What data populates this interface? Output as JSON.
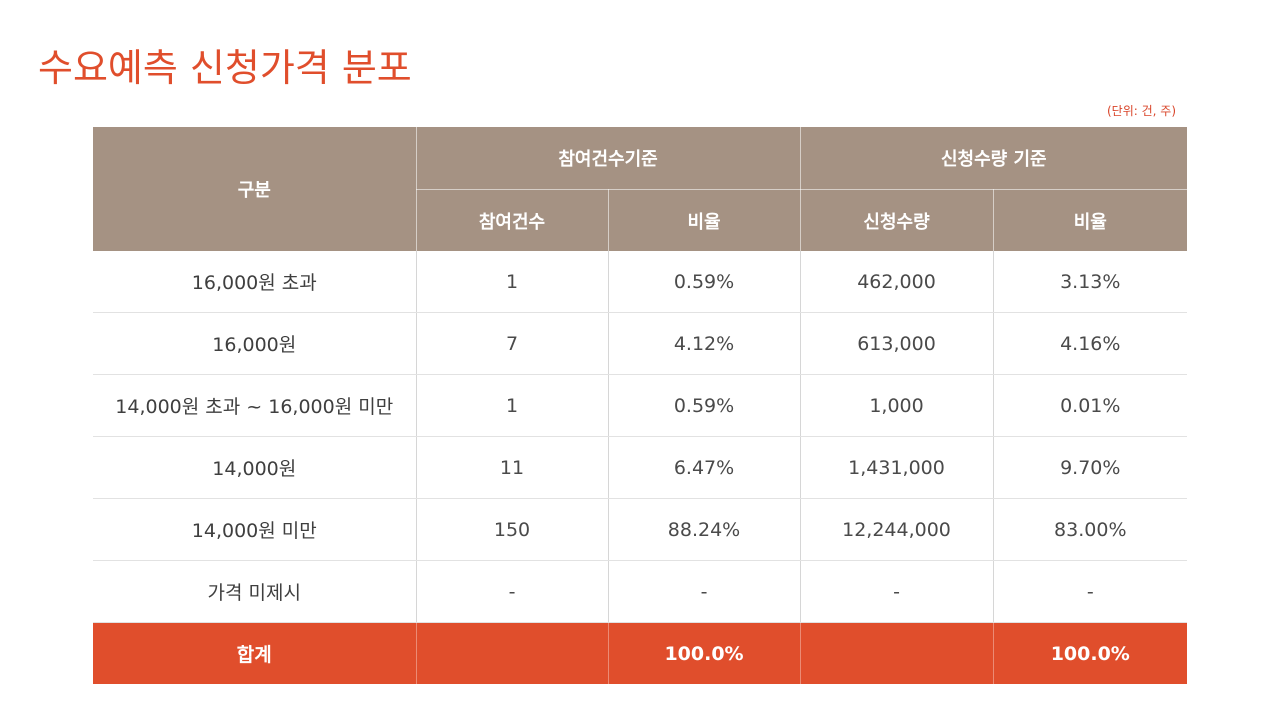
{
  "title": "수요예측 신청가격 분포",
  "unit_note": "(단위: 건, 주)",
  "table": {
    "header": {
      "category": "구분",
      "group_participation": "참여건수기준",
      "group_quantity": "신청수량 기준",
      "sub_participation_count": "참여건수",
      "sub_participation_ratio": "비율",
      "sub_quantity": "신청수량",
      "sub_quantity_ratio": "비율"
    },
    "rows": [
      {
        "label": "16,000원 초과",
        "count": "1",
        "count_ratio": "0.59%",
        "quantity": "462,000",
        "quantity_ratio": "3.13%"
      },
      {
        "label": "16,000원",
        "count": "7",
        "count_ratio": "4.12%",
        "quantity": "613,000",
        "quantity_ratio": "4.16%"
      },
      {
        "label": "14,000원 초과 ~ 16,000원 미만",
        "count": "1",
        "count_ratio": "0.59%",
        "quantity": "1,000",
        "quantity_ratio": "0.01%"
      },
      {
        "label": "14,000원",
        "count": "11",
        "count_ratio": "6.47%",
        "quantity": "1,431,000",
        "quantity_ratio": "9.70%"
      },
      {
        "label": "14,000원 미만",
        "count": "150",
        "count_ratio": "88.24%",
        "quantity": "12,244,000",
        "quantity_ratio": "83.00%"
      },
      {
        "label": "가격 미제시",
        "count": "-",
        "count_ratio": "-",
        "quantity": "-",
        "quantity_ratio": "-"
      }
    ],
    "total": {
      "label": "합계",
      "count": "",
      "count_ratio": "100.0%",
      "quantity": "",
      "quantity_ratio": "100.0%"
    }
  },
  "colors": {
    "title": "#e04e2c",
    "header_bg": "#a59283",
    "total_bg": "#e04e2c",
    "body_text": "#4a4a4a"
  }
}
